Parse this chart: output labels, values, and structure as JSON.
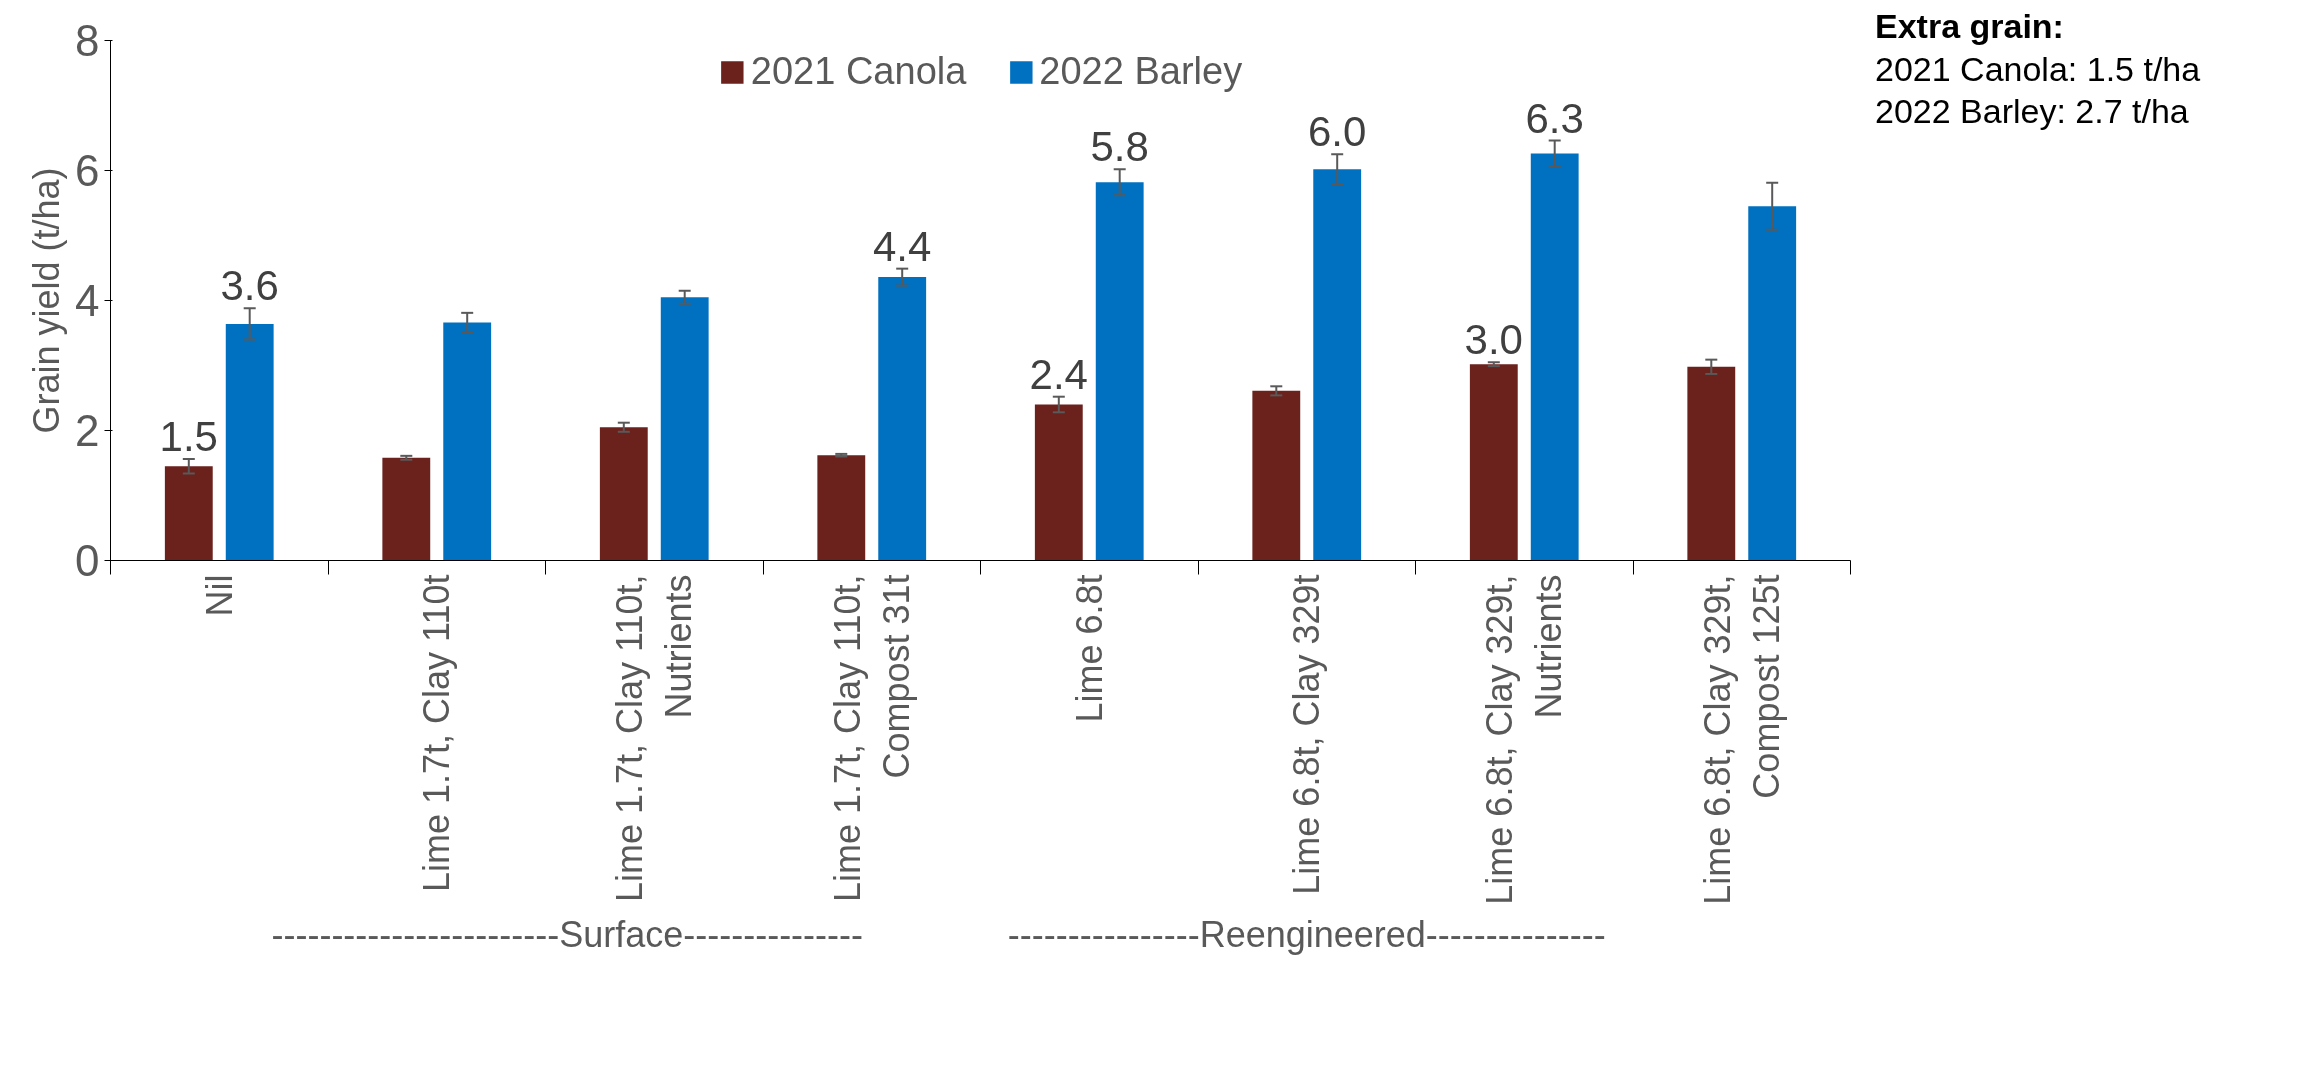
{
  "chart_data": {
    "type": "bar",
    "ylabel": "Grain yield (t/ha)",
    "categories": [
      "Nil",
      "Lime 1.7t, Clay 110t",
      "Lime 1.7t, Clay 110t,\nNutrients",
      "Lime 1.7t, Clay 110t,\nCompost 31t",
      "Lime 6.8t",
      "Lime 6.8t, Clay 329t",
      "Lime 6.8t, Clay 329t,\nNutrients",
      "Lime 6.8t, Clay 329t,\nCompost 125t"
    ],
    "series": [
      {
        "name": "2021 Canola",
        "color": "#6b211c",
        "values": [
          1.45,
          1.58,
          2.05,
          1.62,
          2.4,
          2.61,
          3.02,
          2.98
        ],
        "errors": [
          0.11,
          0.03,
          0.07,
          0.02,
          0.12,
          0.07,
          0.03,
          0.11
        ],
        "value_labels": [
          "1.5",
          null,
          null,
          null,
          "2.4",
          null,
          "3.0",
          null
        ]
      },
      {
        "name": "2022 Barley",
        "color": "#0070c0",
        "values": [
          3.64,
          3.66,
          4.05,
          4.36,
          5.82,
          6.02,
          6.26,
          5.45
        ],
        "errors": [
          0.24,
          0.15,
          0.1,
          0.13,
          0.2,
          0.23,
          0.2,
          0.36
        ],
        "value_labels": [
          "3.6",
          null,
          null,
          "4.4",
          "5.8",
          "6.0",
          "6.3",
          null
        ]
      }
    ],
    "ylim": [
      0,
      8
    ],
    "yticks": [
      0,
      2,
      4,
      6,
      8
    ],
    "legend": "top",
    "annotations": [
      "------------------------Surface---------------",
      "----------------Reengineered---------------",
      "Extra grain:",
      "2021 Canola: 1.5 t/ha",
      "2022 Barley: 2.7 t/ha"
    ]
  }
}
